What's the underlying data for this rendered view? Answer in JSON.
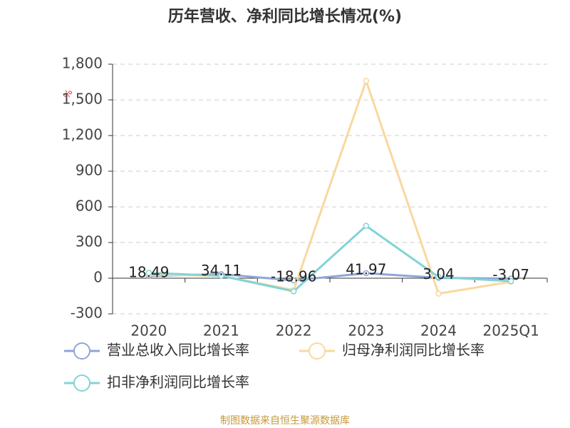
{
  "chart_data": {
    "type": "line",
    "title": "历年营收、净利同比增长情况(%)",
    "y_axis_label": "%",
    "categories": [
      "2020",
      "2021",
      "2022",
      "2023",
      "2024",
      "2025Q1"
    ],
    "series": [
      {
        "name": "营业总收入同比增长率",
        "color": "#8fa6d6",
        "values": [
          18.49,
          34.11,
          -18.96,
          41.97,
          3.04,
          -3.07
        ],
        "show_labels": true
      },
      {
        "name": "归母净利润同比增长率",
        "color": "#f9d89e",
        "values": [
          30,
          20,
          -100,
          1660,
          -130,
          -30
        ],
        "show_labels": false
      },
      {
        "name": "扣非净利润同比增长率",
        "color": "#82d3d6",
        "values": [
          45,
          20,
          -110,
          440,
          10,
          -25
        ],
        "show_labels": false
      }
    ],
    "ylim": [
      -300,
      1800
    ],
    "yticks": [
      -300,
      0,
      300,
      600,
      900,
      {
        "value": 1200,
        "label": "1,200"
      },
      {
        "value": 1500,
        "label": "1,500"
      },
      {
        "value": 1800,
        "label": "1,800"
      }
    ],
    "grid": true,
    "source": "制图数据来自恒生聚源数据库"
  }
}
